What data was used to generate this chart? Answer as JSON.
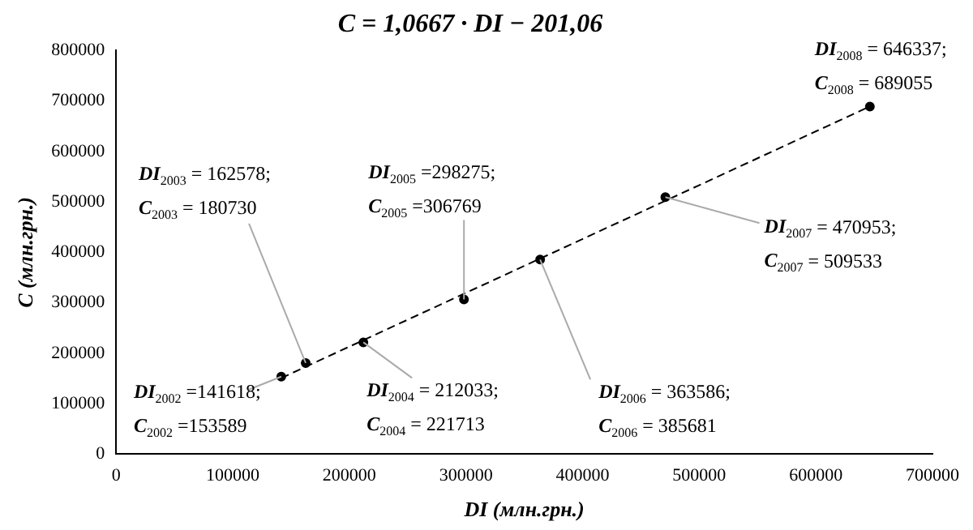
{
  "chart_data": {
    "type": "scatter",
    "title": "C = 1,0667 · DI − 201,06",
    "xlabel": "DI (млн.грн.)",
    "ylabel": "C (млн.грн.)",
    "x": [
      141618,
      162578,
      212033,
      298275,
      363586,
      470953,
      646337
    ],
    "series": [
      {
        "type": "scatter",
        "color": "#000000",
        "values": [
          153589,
          180730,
          221713,
          306769,
          385681,
          509533,
          689055
        ],
        "marker": "circle"
      },
      {
        "type": "line",
        "color": "#000000",
        "x": [
          141618,
          646337
        ],
        "values": [
          150863,
          689254
        ],
        "line_style": "dashed",
        "marker": "none"
      }
    ],
    "annotations": [
      {
        "text": "DI$_{2002}$ =141618;",
        "x": 141618,
        "y": 153589
      },
      "C$_{2002}$ =153589",
      "DI$_{2003}$ = 162578;",
      {
        "text": "C$_{2003}$ = 180730",
        "x": 162578,
        "y": 180730
      },
      {
        "text": "DI$_{2004}$ = 212033;",
        "x": 212033,
        "y": 221713
      },
      "C$_{2004}$ = 221713",
      "DI$_{2005}$ =298275;",
      {
        "text": "C$_{2005}$ =306769",
        "x": 298275,
        "y": 306769
      },
      {
        "text": "DI$_{2006}$ = 363586;",
        "x": 363586,
        "y": 385681
      },
      "C$_{2006}$ = 385681",
      {
        "text": "DI$_{2007}$ = 470953;",
        "x": 470953,
        "y": 509533
      },
      "C$_{2007}$ = 509533",
      "DI$_{2008}$ = 646337;",
      {
        "text": "C$_{2008}$ = 689055",
        "x": 646337,
        "y": 689055
      }
    ],
    "xlim": [
      0,
      700000
    ],
    "xticks": [
      0,
      100000,
      200000,
      300000,
      400000,
      500000,
      600000,
      700000
    ],
    "ylim": [
      0,
      800000
    ],
    "yticks": [
      0,
      100000,
      200000,
      300000,
      400000,
      500000,
      600000,
      700000,
      800000
    ],
    "grid": false,
    "legend": false
  }
}
